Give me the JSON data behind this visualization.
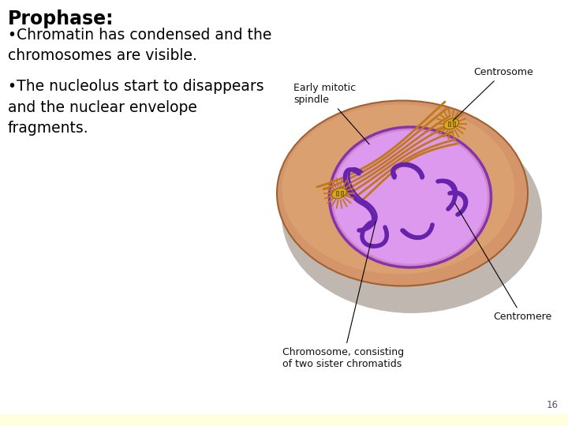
{
  "title": "Prophase:",
  "bullet1": "•Chromatin has condensed and the\nchromosomes are visible.",
  "bullet2": "•The nucleolus start to disappears\nand the nuclear envelope\nfragments.",
  "bg_color": "#ffffff",
  "text_color": "#000000",
  "slide_number": "16",
  "bottom_bar_color": "#ffffdd",
  "label_early_mitotic": "Early mitotic\nspindle",
  "label_centrosome": "Centrosome",
  "label_chromosome": "Chromosome, consisting\nof two sister chromatids",
  "label_centromere": "Centromere",
  "cell_outer_color": "#d4956a",
  "cell_outer_edge": "#b07040",
  "cell_shadow_color": "#c0b8b0",
  "nucleus_fill": "#cc88cc",
  "nucleus_edge": "#8833aa",
  "spindle_color": "#c07818",
  "centrosome_ray_color": "#c07818",
  "centrosome_body_color": "#d4a820",
  "chromosome_color": "#6622aa",
  "title_fontsize": 17,
  "bullet_fontsize": 13.5
}
